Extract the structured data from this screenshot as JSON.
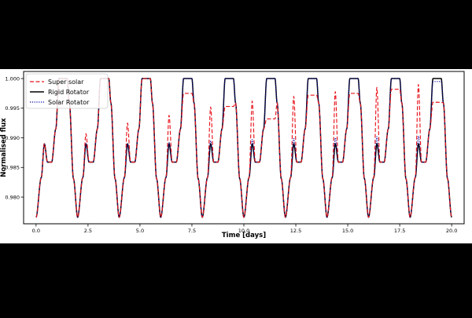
{
  "chart_data": {
    "type": "line",
    "xlabel": "Time [days]",
    "ylabel": "Normalised flux",
    "xlim": [
      -0.6,
      20.6
    ],
    "ylim": [
      0.9755,
      1.0012
    ],
    "x_ticks": [
      0.0,
      2.5,
      5.0,
      7.5,
      10.0,
      12.5,
      15.0,
      17.5,
      20.0
    ],
    "x_tick_labels": [
      "0.0",
      "2.5",
      "5.0",
      "7.5",
      "10.0",
      "12.5",
      "15.0",
      "17.5",
      "20.0"
    ],
    "y_ticks": [
      0.98,
      0.985,
      0.99,
      0.995,
      1.0
    ],
    "y_tick_labels": [
      "0.980",
      "0.985",
      "0.990",
      "0.995",
      "1.000"
    ],
    "grid": false,
    "legend_position": "top-left",
    "series": [
      {
        "name": "Super solar",
        "color": "#e8141b",
        "style": "dashed",
        "peak_x": [
          1.4,
          3.4,
          5.4,
          7.4,
          9.4,
          11.4,
          13.4,
          15.4,
          17.4,
          19.4
        ],
        "peak_y": [
          1.0,
          1.0,
          1.0,
          0.9975,
          0.9953,
          0.9932,
          0.9972,
          0.9975,
          0.9982,
          0.996
        ],
        "bump_x": [
          0.4,
          2.4,
          4.4,
          6.4,
          8.4,
          10.4,
          12.4,
          14.4,
          16.4,
          18.4
        ],
        "bump_y": [
          0.989,
          0.9907,
          0.9925,
          0.9938,
          0.9952,
          0.9962,
          0.997,
          0.9978,
          0.9985,
          0.999
        ]
      },
      {
        "name": "Rigid Rotator",
        "color": "#000000",
        "style": "solid",
        "peak_x": [
          1.4,
          3.4,
          5.4,
          7.4,
          9.4,
          11.4,
          13.4,
          15.4,
          17.4,
          19.4
        ],
        "peak_y": [
          1.0,
          1.0,
          1.0,
          1.0,
          1.0,
          1.0,
          1.0,
          1.0,
          1.0,
          1.0
        ],
        "bump_x": [
          0.4,
          2.4,
          4.4,
          6.4,
          8.4,
          10.4,
          12.4,
          14.4,
          16.4,
          18.4
        ],
        "bump_y": [
          0.989,
          0.989,
          0.989,
          0.989,
          0.989,
          0.989,
          0.989,
          0.989,
          0.989,
          0.989
        ]
      },
      {
        "name": "Solar Rotator",
        "color": "#0a0aa8",
        "style": "dotted",
        "peak_x": [
          1.4,
          3.4,
          5.4,
          7.4,
          9.4,
          11.4,
          13.4,
          15.4,
          17.4,
          19.4
        ],
        "peak_y": [
          1.0,
          1.0,
          1.0,
          1.0,
          1.0,
          1.0,
          1.0,
          1.0,
          1.0,
          0.9995
        ],
        "bump_x": [
          0.4,
          2.4,
          4.4,
          6.4,
          8.4,
          10.4,
          12.4,
          14.4,
          16.4,
          18.4
        ],
        "bump_y": [
          0.989,
          0.989,
          0.989,
          0.9892,
          0.9895,
          0.9897,
          0.9899,
          0.99,
          0.9902,
          0.9903
        ]
      }
    ]
  }
}
